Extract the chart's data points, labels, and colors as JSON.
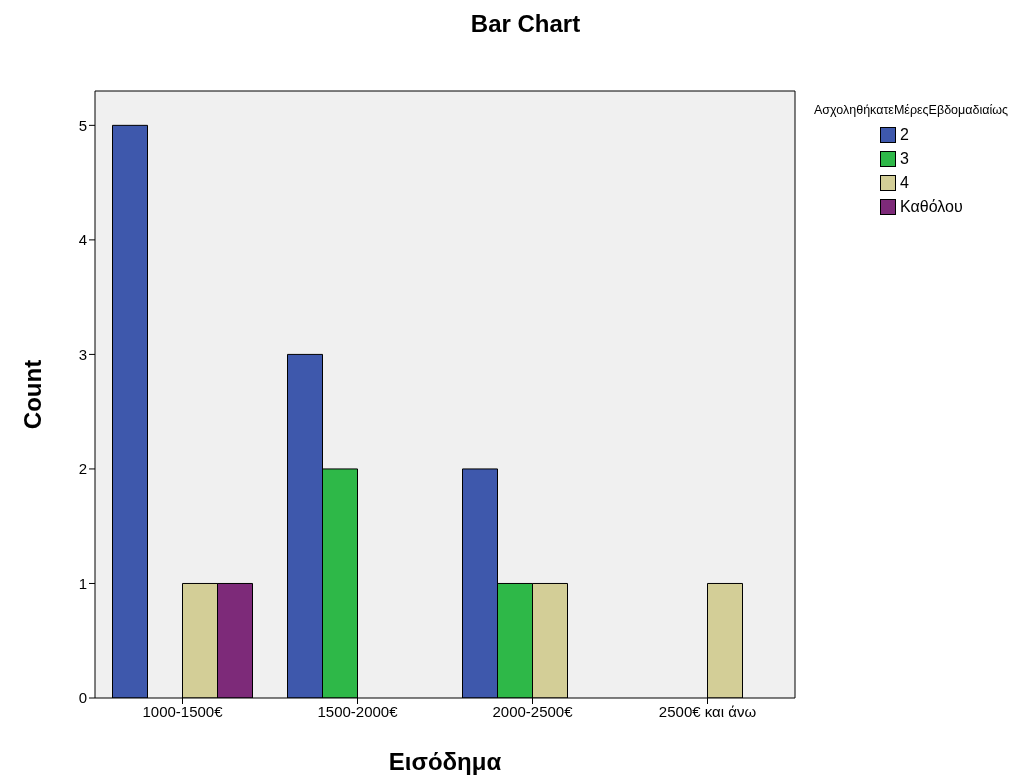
{
  "chart_data": {
    "type": "bar",
    "title": "Bar Chart",
    "xlabel": "Εισόδημα",
    "ylabel": "Count",
    "legend_title": "ΑσχοληθήκατεΜέρεςΕβδομαδιαίως",
    "legend": "right",
    "categories": [
      "1000-1500€",
      "1500-2000€",
      "2000-2500€",
      "2500€ και άνω"
    ],
    "series": [
      {
        "name": "2",
        "color": "#3e58ac",
        "values": [
          5,
          3,
          2,
          null
        ]
      },
      {
        "name": "3",
        "color": "#2eb848",
        "values": [
          null,
          2,
          1,
          null
        ]
      },
      {
        "name": "4",
        "color": "#d3ce97",
        "values": [
          1,
          null,
          1,
          1
        ]
      },
      {
        "name": "Καθόλου",
        "color": "#7d2a79",
        "values": [
          1,
          null,
          null,
          null
        ]
      }
    ],
    "ylim": [
      0,
      5.3
    ],
    "yticks": [
      0,
      1,
      2,
      3,
      4,
      5
    ],
    "grid": false
  }
}
